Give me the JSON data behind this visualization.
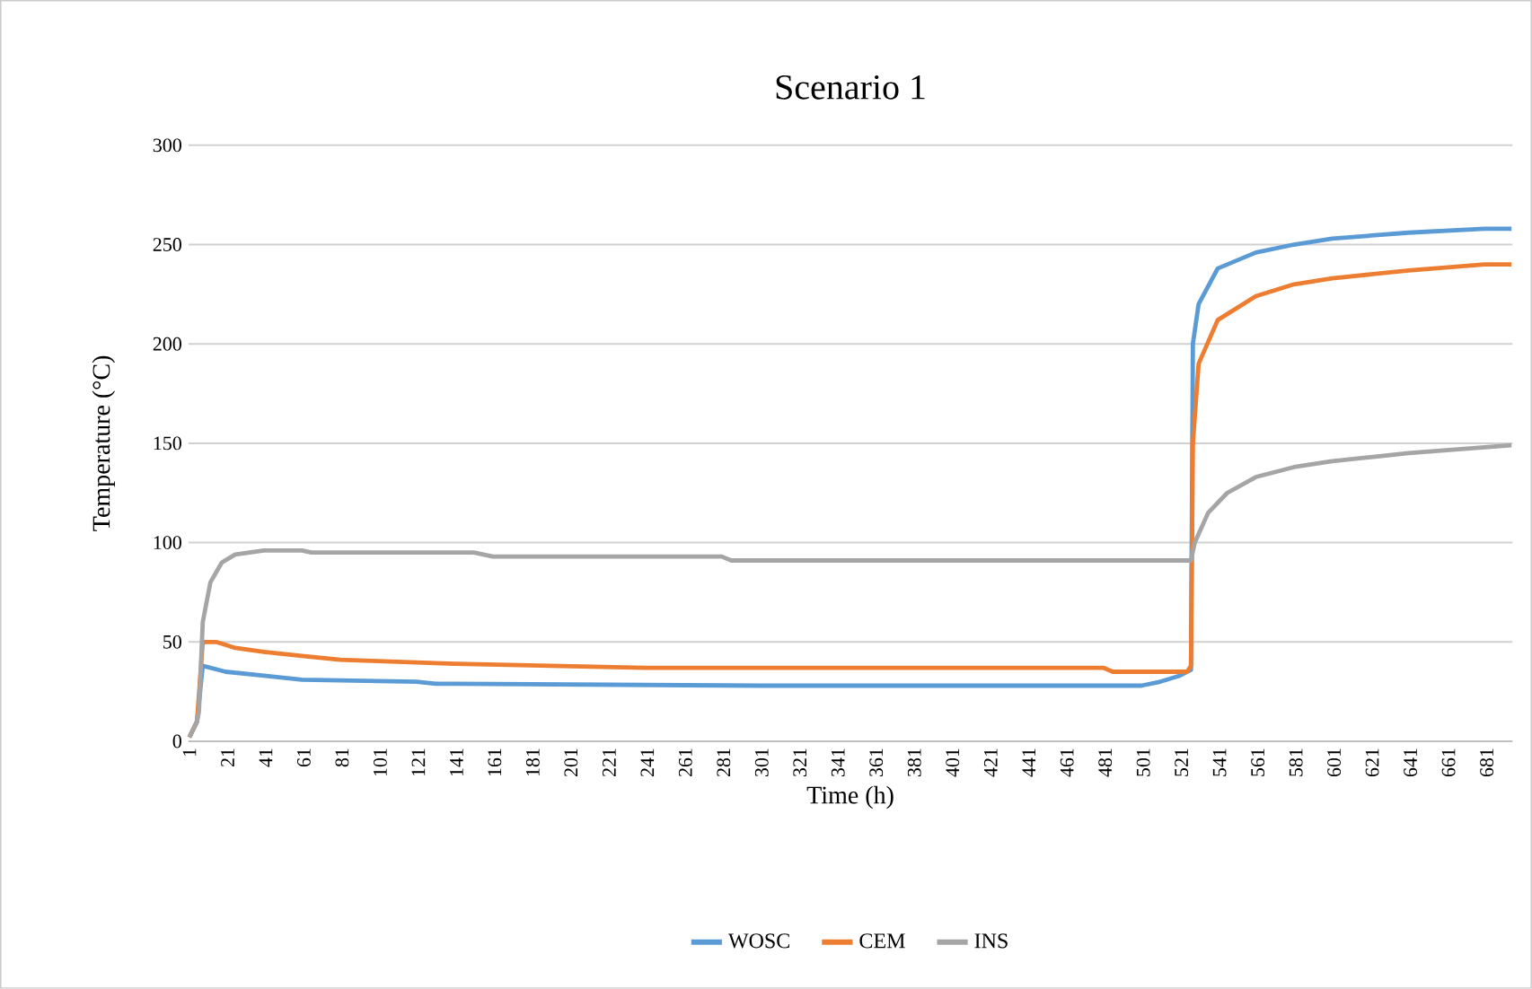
{
  "chart_data": {
    "type": "line",
    "title": "Scenario 1",
    "xlabel": "Time (h)",
    "ylabel": "Temperature (°C)",
    "xlim": [
      0.5,
      694.5
    ],
    "xticks": [
      1,
      21,
      41,
      61,
      81,
      101,
      121,
      141,
      161,
      181,
      201,
      221,
      241,
      261,
      281,
      301,
      321,
      341,
      361,
      381,
      401,
      421,
      441,
      461,
      481,
      501,
      521,
      541,
      561,
      581,
      601,
      621,
      641,
      661,
      681
    ],
    "ylim": [
      0,
      300
    ],
    "yticks": [
      0,
      50,
      100,
      150,
      200,
      250,
      300
    ],
    "grid": "y",
    "legend": "bottom",
    "marker": "none",
    "line_style": "solid",
    "series": [
      {
        "name": "WOSC",
        "color": "#5b9bd5",
        "x": [
          1,
          5,
          8,
          20,
          40,
          60,
          120,
          130,
          300,
          480,
          500,
          510,
          520,
          526,
          527,
          530,
          540,
          560,
          580,
          600,
          640,
          680,
          694
        ],
        "values": [
          2,
          10,
          38,
          35,
          33,
          31,
          30,
          29,
          28,
          28,
          28,
          30,
          33,
          36,
          200,
          220,
          238,
          246,
          250,
          253,
          256,
          258,
          258
        ]
      },
      {
        "name": "CEM",
        "color": "#ed7d31",
        "x": [
          1,
          5,
          8,
          15,
          25,
          40,
          60,
          80,
          140,
          240,
          480,
          485,
          524,
          526,
          527,
          530,
          540,
          560,
          580,
          600,
          640,
          680,
          694
        ],
        "values": [
          2,
          10,
          50,
          50,
          47,
          45,
          43,
          41,
          39,
          37,
          37,
          35,
          35,
          38,
          150,
          190,
          212,
          224,
          230,
          233,
          237,
          240,
          240
        ]
      },
      {
        "name": "INS",
        "color": "#a5a5a5",
        "x": [
          1,
          5,
          6,
          8,
          12,
          18,
          25,
          40,
          60,
          65,
          150,
          160,
          280,
          285,
          526,
          528,
          535,
          545,
          560,
          580,
          600,
          640,
          680,
          694
        ],
        "values": [
          2,
          10,
          15,
          60,
          80,
          90,
          94,
          96,
          96,
          95,
          95,
          93,
          93,
          91,
          91,
          100,
          115,
          125,
          133,
          138,
          141,
          145,
          148,
          149
        ]
      }
    ]
  }
}
